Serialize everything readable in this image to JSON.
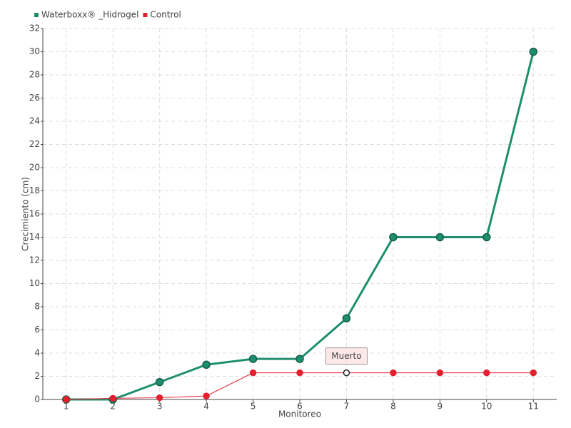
{
  "chart_data": {
    "type": "line",
    "x_label": "Monitoreo",
    "y_label": "Crecimiento (cm)",
    "x": [
      1,
      2,
      3,
      4,
      5,
      6,
      7,
      8,
      9,
      10,
      11
    ],
    "series": [
      {
        "name": "Waterboxx® _Hidrogel",
        "color": "#1e8f6e",
        "values": [
          0,
          0,
          1.5,
          3,
          3.5,
          3.5,
          7,
          14,
          14,
          14,
          30
        ]
      },
      {
        "name": "Control",
        "color": "#e5202e",
        "values": [
          0,
          0.1,
          0.15,
          0.3,
          2.3,
          2.3,
          2.3,
          2.3,
          2.3,
          2.3,
          2.3
        ]
      }
    ],
    "xlim": [
      0.5,
      11.5
    ],
    "xticks": [
      1,
      2,
      3,
      4,
      5,
      6,
      7,
      8,
      9,
      10,
      11
    ],
    "ylim": [
      0,
      32
    ],
    "yticks": [
      0,
      2,
      4,
      6,
      8,
      10,
      12,
      14,
      16,
      18,
      20,
      22,
      24,
      26,
      28,
      30,
      32
    ],
    "grid": true,
    "legend": "top-left",
    "annotations": [
      {
        "text": "Muerto",
        "x": 7,
        "y": 2.3
      }
    ]
  }
}
